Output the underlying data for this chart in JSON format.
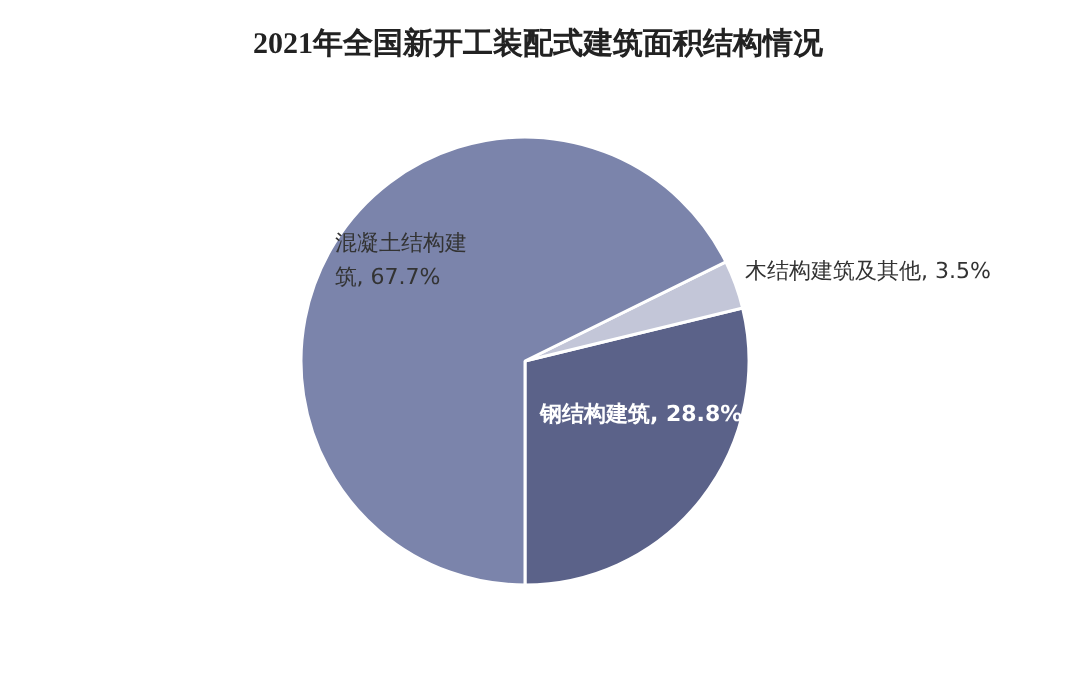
{
  "chart_data": {
    "type": "pie",
    "title": "2021年全国新开工装配式建筑面积结构情况",
    "categories": [
      "钢结构建筑",
      "木结构建筑及其他",
      "混凝土结构建筑"
    ],
    "values": [
      28.8,
      3.5,
      67.7
    ],
    "colors": [
      "#5b6289",
      "#c3c6d8",
      "#7b84ab"
    ],
    "data_labels": true,
    "value_labels": [
      "28.8%",
      "3.5%",
      "67.7%"
    ]
  }
}
